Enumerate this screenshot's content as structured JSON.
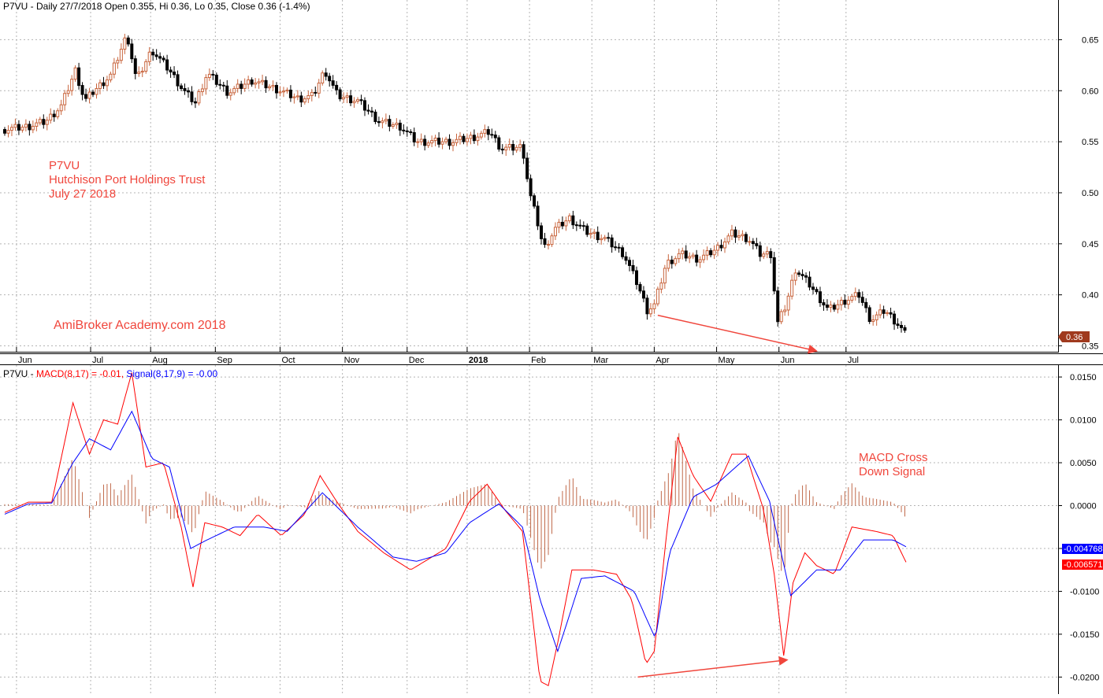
{
  "colors": {
    "up_candle": "#c8643c",
    "down_candle": "#000000",
    "macd": "#ff0000",
    "signal": "#0000ff",
    "histogram": "#c0694a",
    "annotation": "#f0463c",
    "last_price_tag": "#a03a1e",
    "signal_tag": "#0000ff",
    "macd_tag": "#ff0000",
    "grid": "#b4b4b4"
  },
  "price_panel": {
    "header": "P7VU - Daily 27/7/2018 Open 0.355, Hi 0.36, Lo 0.35, Close 0.36 (-1.4%)",
    "annotation_lines": [
      "P7VU",
      "Hutchison Port Holdings Trust",
      "July 27 2018"
    ],
    "watermark": "AmiBroker Academy.com  2018",
    "last_price_tag": "0.36"
  },
  "macd_panel": {
    "header_prefix": "P7VU - ",
    "header_macd": "MACD(8,17) = -0.01, ",
    "header_signal": "Signal(8,17,9) = -0.00",
    "annotation_lines": [
      "MACD Cross",
      "Down Signal"
    ],
    "signal_tag": "-0.004768",
    "macd_tag": "-0.006571"
  },
  "chart_data": [
    {
      "type": "candlestick",
      "title": "P7VU - Daily 27/7/2018 Open 0.355, Hi 0.36, Lo 0.35, Close 0.36 (-1.4%)",
      "x_ticks": [
        "Jun",
        "Jul",
        "Aug",
        "Sep",
        "Oct",
        "Nov",
        "Dec",
        "2018",
        "Feb",
        "Mar",
        "Apr",
        "May",
        "Jun",
        "Jul"
      ],
      "x_tick_days": [
        10,
        73,
        124,
        179,
        234,
        287,
        342,
        393,
        446,
        499,
        552,
        605,
        658,
        715
      ],
      "y_ticks": [
        "0.35",
        "0.40",
        "0.45",
        "0.50",
        "0.55",
        "0.60",
        "0.65"
      ],
      "ylim": [
        0.345,
        0.675
      ],
      "grid": true,
      "price_points": [
        {
          "d": 0,
          "p": 0.562
        },
        {
          "d": 20,
          "p": 0.565
        },
        {
          "d": 35,
          "p": 0.57
        },
        {
          "d": 48,
          "p": 0.585
        },
        {
          "d": 60,
          "p": 0.62
        },
        {
          "d": 68,
          "p": 0.59
        },
        {
          "d": 76,
          "p": 0.6
        },
        {
          "d": 90,
          "p": 0.615
        },
        {
          "d": 104,
          "p": 0.655
        },
        {
          "d": 112,
          "p": 0.61
        },
        {
          "d": 125,
          "p": 0.64
        },
        {
          "d": 140,
          "p": 0.62
        },
        {
          "d": 152,
          "p": 0.6
        },
        {
          "d": 162,
          "p": 0.588
        },
        {
          "d": 172,
          "p": 0.617
        },
        {
          "d": 190,
          "p": 0.598
        },
        {
          "d": 210,
          "p": 0.61
        },
        {
          "d": 230,
          "p": 0.602
        },
        {
          "d": 250,
          "p": 0.592
        },
        {
          "d": 262,
          "p": 0.595
        },
        {
          "d": 272,
          "p": 0.62
        },
        {
          "d": 283,
          "p": 0.595
        },
        {
          "d": 300,
          "p": 0.59
        },
        {
          "d": 318,
          "p": 0.57
        },
        {
          "d": 336,
          "p": 0.565
        },
        {
          "d": 350,
          "p": 0.55
        },
        {
          "d": 380,
          "p": 0.55
        },
        {
          "d": 400,
          "p": 0.555
        },
        {
          "d": 412,
          "p": 0.56
        },
        {
          "d": 422,
          "p": 0.543
        },
        {
          "d": 440,
          "p": 0.545
        },
        {
          "d": 446,
          "p": 0.5
        },
        {
          "d": 452,
          "p": 0.475
        },
        {
          "d": 458,
          "p": 0.445
        },
        {
          "d": 468,
          "p": 0.465
        },
        {
          "d": 480,
          "p": 0.475
        },
        {
          "d": 494,
          "p": 0.462
        },
        {
          "d": 510,
          "p": 0.455
        },
        {
          "d": 526,
          "p": 0.44
        },
        {
          "d": 538,
          "p": 0.41
        },
        {
          "d": 546,
          "p": 0.385
        },
        {
          "d": 552,
          "p": 0.39
        },
        {
          "d": 562,
          "p": 0.43
        },
        {
          "d": 574,
          "p": 0.44
        },
        {
          "d": 590,
          "p": 0.435
        },
        {
          "d": 605,
          "p": 0.445
        },
        {
          "d": 618,
          "p": 0.46
        },
        {
          "d": 632,
          "p": 0.455
        },
        {
          "d": 642,
          "p": 0.44
        },
        {
          "d": 652,
          "p": 0.44
        },
        {
          "d": 656,
          "p": 0.37
        },
        {
          "d": 664,
          "p": 0.39
        },
        {
          "d": 672,
          "p": 0.425
        },
        {
          "d": 684,
          "p": 0.41
        },
        {
          "d": 700,
          "p": 0.385
        },
        {
          "d": 715,
          "p": 0.395
        },
        {
          "d": 726,
          "p": 0.4
        },
        {
          "d": 736,
          "p": 0.375
        },
        {
          "d": 748,
          "p": 0.385
        },
        {
          "d": 760,
          "p": 0.37
        },
        {
          "d": 766,
          "p": 0.36
        }
      ],
      "annotations": [
        "P7VU",
        "Hutchison Port Holdings Trust",
        "July 27 2018",
        "AmiBroker Academy.com  2018"
      ],
      "trend_line": {
        "from": {
          "d": 555,
          "p": 0.38
        },
        "to": {
          "d": 690,
          "p": 0.345
        }
      }
    },
    {
      "type": "line",
      "title": "P7VU - MACD(8,17) = -0.01, Signal(8,17,9) = -0.00",
      "y_ticks": [
        "-0.0200",
        "-0.0150",
        "-0.0100",
        "-0.0050",
        "0.0000",
        "0.0050",
        "0.0100",
        "0.0150"
      ],
      "ylim": [
        -0.0218,
        0.0162
      ],
      "grid": true,
      "series": [
        {
          "name": "MACD(8,17)",
          "color": "#ff0000",
          "points": [
            {
              "d": 0,
              "v": -0.0008
            },
            {
              "d": 20,
              "v": 0.0004
            },
            {
              "d": 40,
              "v": 0.0004
            },
            {
              "d": 58,
              "v": 0.012
            },
            {
              "d": 72,
              "v": 0.006
            },
            {
              "d": 84,
              "v": 0.01
            },
            {
              "d": 96,
              "v": 0.0095
            },
            {
              "d": 108,
              "v": 0.0155
            },
            {
              "d": 120,
              "v": 0.0045
            },
            {
              "d": 135,
              "v": 0.005
            },
            {
              "d": 150,
              "v": -0.0025
            },
            {
              "d": 160,
              "v": -0.0095
            },
            {
              "d": 170,
              "v": -0.002
            },
            {
              "d": 185,
              "v": -0.0025
            },
            {
              "d": 200,
              "v": -0.0035
            },
            {
              "d": 215,
              "v": -0.001
            },
            {
              "d": 235,
              "v": -0.0035
            },
            {
              "d": 255,
              "v": -0.001
            },
            {
              "d": 268,
              "v": 0.0035
            },
            {
              "d": 282,
              "v": 0.0005
            },
            {
              "d": 300,
              "v": -0.003
            },
            {
              "d": 322,
              "v": -0.0055
            },
            {
              "d": 345,
              "v": -0.0075
            },
            {
              "d": 375,
              "v": -0.005
            },
            {
              "d": 395,
              "v": 0.0005
            },
            {
              "d": 410,
              "v": 0.0025
            },
            {
              "d": 425,
              "v": -0.0005
            },
            {
              "d": 440,
              "v": -0.003
            },
            {
              "d": 446,
              "v": -0.01
            },
            {
              "d": 455,
              "v": -0.0205
            },
            {
              "d": 462,
              "v": -0.021
            },
            {
              "d": 470,
              "v": -0.016
            },
            {
              "d": 482,
              "v": -0.0075
            },
            {
              "d": 500,
              "v": -0.0075
            },
            {
              "d": 520,
              "v": -0.008
            },
            {
              "d": 533,
              "v": -0.011
            },
            {
              "d": 545,
              "v": -0.0185
            },
            {
              "d": 552,
              "v": -0.017
            },
            {
              "d": 562,
              "v": -0.004
            },
            {
              "d": 572,
              "v": 0.008
            },
            {
              "d": 585,
              "v": 0.0035
            },
            {
              "d": 600,
              "v": 0.0005
            },
            {
              "d": 618,
              "v": 0.006
            },
            {
              "d": 630,
              "v": 0.006
            },
            {
              "d": 645,
              "v": -0.0005
            },
            {
              "d": 654,
              "v": -0.008
            },
            {
              "d": 662,
              "v": -0.0175
            },
            {
              "d": 670,
              "v": -0.009
            },
            {
              "d": 680,
              "v": -0.0055
            },
            {
              "d": 690,
              "v": -0.007
            },
            {
              "d": 705,
              "v": -0.008
            },
            {
              "d": 720,
              "v": -0.0025
            },
            {
              "d": 740,
              "v": -0.003
            },
            {
              "d": 755,
              "v": -0.0035
            },
            {
              "d": 766,
              "v": -0.0066
            }
          ]
        },
        {
          "name": "Signal(8,17,9)",
          "color": "#0000ff",
          "points": [
            {
              "d": 0,
              "v": -0.001
            },
            {
              "d": 20,
              "v": 0.0002
            },
            {
              "d": 40,
              "v": 0.0003
            },
            {
              "d": 58,
              "v": 0.005
            },
            {
              "d": 72,
              "v": 0.0078
            },
            {
              "d": 90,
              "v": 0.0065
            },
            {
              "d": 108,
              "v": 0.011
            },
            {
              "d": 125,
              "v": 0.0055
            },
            {
              "d": 140,
              "v": 0.0045
            },
            {
              "d": 158,
              "v": -0.005
            },
            {
              "d": 172,
              "v": -0.004
            },
            {
              "d": 195,
              "v": -0.0025
            },
            {
              "d": 220,
              "v": -0.0025
            },
            {
              "d": 240,
              "v": -0.003
            },
            {
              "d": 270,
              "v": 0.0015
            },
            {
              "d": 300,
              "v": -0.0025
            },
            {
              "d": 330,
              "v": -0.006
            },
            {
              "d": 350,
              "v": -0.0065
            },
            {
              "d": 375,
              "v": -0.0055
            },
            {
              "d": 395,
              "v": -0.002
            },
            {
              "d": 420,
              "v": 0.0002
            },
            {
              "d": 440,
              "v": -0.0025
            },
            {
              "d": 455,
              "v": -0.011
            },
            {
              "d": 470,
              "v": -0.017
            },
            {
              "d": 490,
              "v": -0.0085
            },
            {
              "d": 510,
              "v": -0.0082
            },
            {
              "d": 535,
              "v": -0.01
            },
            {
              "d": 553,
              "v": -0.0155
            },
            {
              "d": 565,
              "v": -0.0055
            },
            {
              "d": 585,
              "v": 0.001
            },
            {
              "d": 605,
              "v": 0.0025
            },
            {
              "d": 632,
              "v": 0.0058
            },
            {
              "d": 650,
              "v": 0.0005
            },
            {
              "d": 668,
              "v": -0.0105
            },
            {
              "d": 690,
              "v": -0.0075
            },
            {
              "d": 710,
              "v": -0.0075
            },
            {
              "d": 730,
              "v": -0.004
            },
            {
              "d": 755,
              "v": -0.004
            },
            {
              "d": 766,
              "v": -0.0048
            }
          ]
        }
      ],
      "annotations": [
        "MACD Cross",
        "Down Signal"
      ],
      "trend_line": {
        "from": {
          "d": 538,
          "v": -0.02
        },
        "to": {
          "d": 665,
          "v": -0.018
        }
      }
    }
  ]
}
